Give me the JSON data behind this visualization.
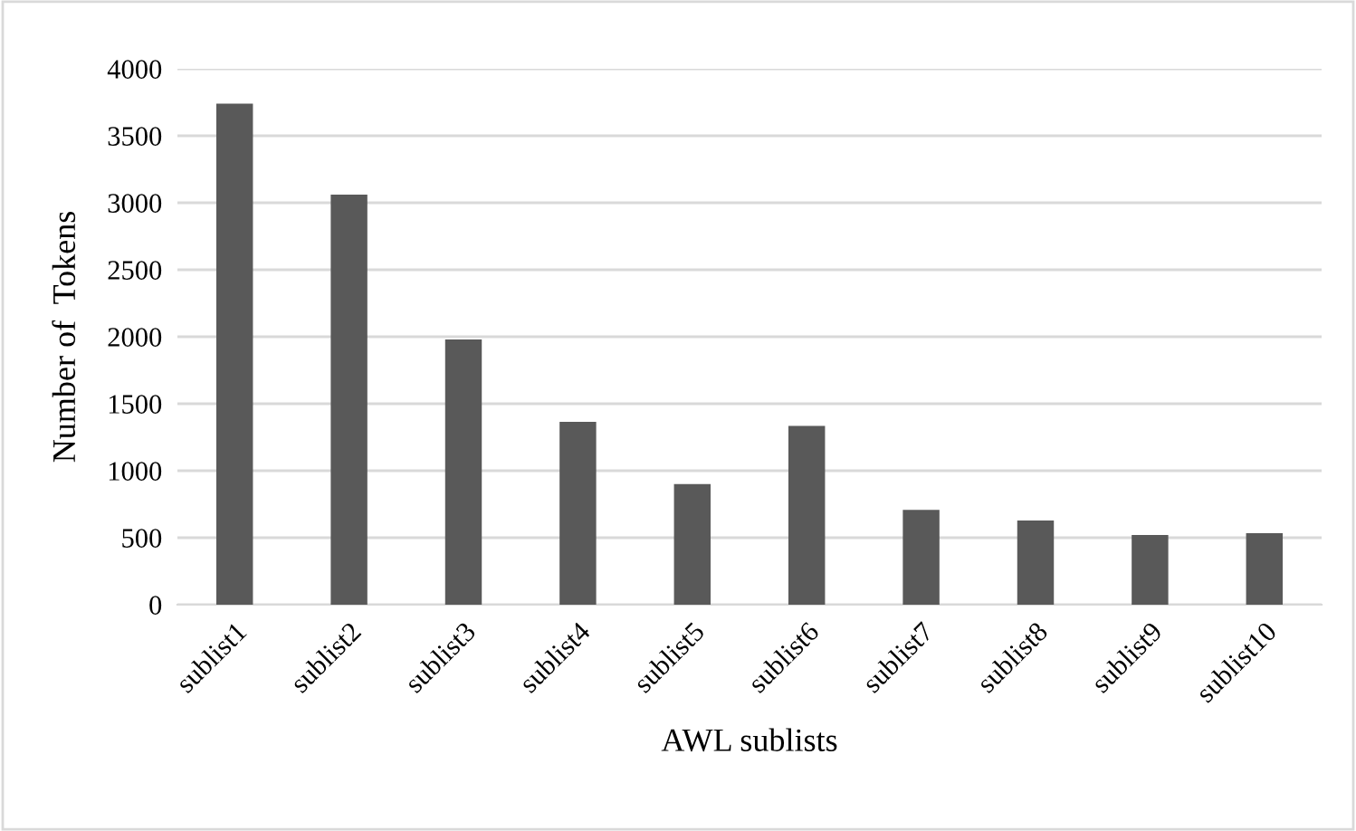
{
  "chart_data": {
    "type": "bar",
    "xlabel": "AWL sublists",
    "ylabel": "Number of  Tokens",
    "categories": [
      "sublist1",
      "sublist2",
      "sublist3",
      "sublist4",
      "sublist5",
      "sublist6",
      "sublist7",
      "sublist8",
      "sublist9",
      "sublist10"
    ],
    "values": [
      3740,
      3060,
      1980,
      1365,
      900,
      1335,
      707,
      629,
      521,
      533
    ],
    "color": "#595959",
    "ylim": [
      0,
      4000
    ],
    "yticks": [
      0,
      500,
      1000,
      1500,
      2000,
      2500,
      3000,
      3500,
      4000
    ],
    "grid": "y"
  }
}
